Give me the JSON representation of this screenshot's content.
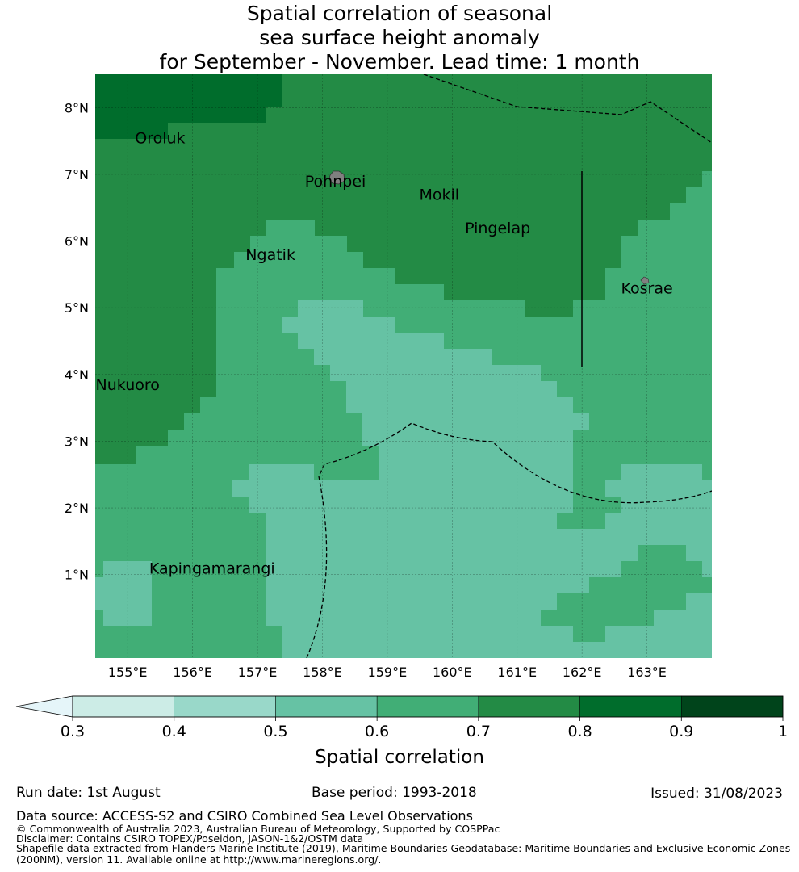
{
  "title": {
    "line1": "Spatial correlation of seasonal",
    "line2": "sea surface height anomaly",
    "line3": "for September - November. Lead time: 1 month"
  },
  "map": {
    "lon_range": [
      154.5,
      164.0
    ],
    "lat_range": [
      -0.25,
      8.5
    ],
    "lon_ticks": [
      "155°E",
      "156°E",
      "157°E",
      "158°E",
      "159°E",
      "160°E",
      "161°E",
      "162°E",
      "163°E"
    ],
    "lat_ticks": [
      "1°N",
      "2°N",
      "3°N",
      "4°N",
      "5°N",
      "6°N",
      "7°N",
      "8°N"
    ],
    "islands": [
      {
        "name": "Oroluk",
        "lon": 155.5,
        "lat": 7.55
      },
      {
        "name": "Pohnpei",
        "lon": 158.2,
        "lat": 6.9
      },
      {
        "name": "Mokil",
        "lon": 159.8,
        "lat": 6.7
      },
      {
        "name": "Pingelap",
        "lon": 160.7,
        "lat": 6.2
      },
      {
        "name": "Ngatik",
        "lon": 157.2,
        "lat": 5.8
      },
      {
        "name": "Kosrae",
        "lon": 163.0,
        "lat": 5.3
      },
      {
        "name": "Nukuoro",
        "lon": 155.0,
        "lat": 3.85
      },
      {
        "name": "Kapingamarangi",
        "lon": 156.3,
        "lat": 1.1
      }
    ],
    "colors": {
      "c03": "#ccece6",
      "c04": "#99d8c9",
      "c05": "#66c2a4",
      "c06": "#41ae76",
      "c07": "#238b45",
      "c08": "#006d2c",
      "c09": "#00441b",
      "under": "#e5f5f9",
      "land": "#808080"
    }
  },
  "colorbar": {
    "label": "Spatial correlation",
    "ticks": [
      "0.3",
      "0.4",
      "0.5",
      "0.6",
      "0.7",
      "0.8",
      "0.9",
      "1"
    ]
  },
  "footer": {
    "run_date": "Run date: 1st August",
    "base_period": "Base period: 1993-2018",
    "issued": "Issued: 31/08/2023",
    "data_source": "Data source: ACCESS-S2 and CSIRO Combined Sea Level Observations",
    "copyright": "© Commonwealth of Australia 2023, Australian Bureau of Meteorology, Supported by COSPPac",
    "disclaimer": "Disclaimer: Contains CSIRO TOPEX/Poseidon, JASON-1&2/OSTM data",
    "shapefile_line1": "Shapefile data extracted from Flanders Marine Institute (2019), Maritime Boundaries Geodatabase: Maritime Boundaries and Exclusive Economic Zones",
    "shapefile_line2": "(200NM), version 11. Available online at http://www.marineregions.org/."
  }
}
